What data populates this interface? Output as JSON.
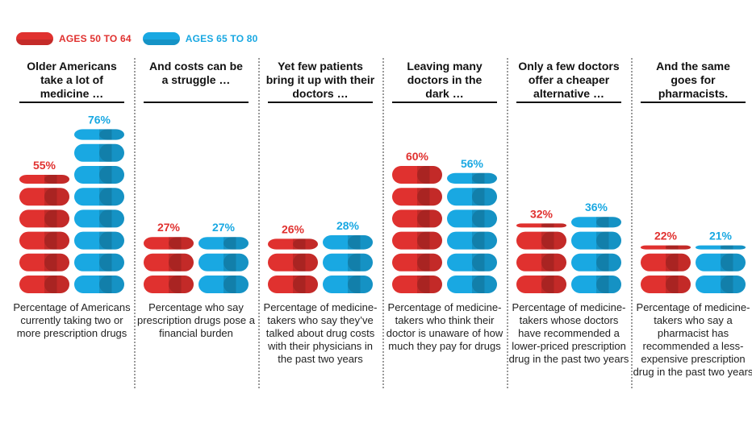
{
  "chart_data": {
    "type": "bar",
    "title": "",
    "series": [
      {
        "name": "AGES 50 TO 64",
        "color": "#e0312f"
      },
      {
        "name": "AGES 65 TO 80",
        "color": "#19a8e2"
      }
    ],
    "panels": [
      {
        "headline": "Older Americans take a lot of medicine …",
        "values": [
          55,
          76
        ],
        "labels": [
          "55%",
          "76%"
        ],
        "caption": "Percentage of Americans currently taking two or more prescription drugs"
      },
      {
        "headline": "And costs can be a struggle …",
        "values": [
          27,
          27
        ],
        "labels": [
          "27%",
          "27%"
        ],
        "caption": "Percentage who say prescription drugs pose a financial burden"
      },
      {
        "headline": "Yet few patients bring it up with their doctors …",
        "values": [
          26,
          28
        ],
        "labels": [
          "26%",
          "28%"
        ],
        "caption": "Percentage of medicine-takers who say they’ve talked about drug costs with their physicians in the past two years"
      },
      {
        "headline": "Leaving many doctors in the dark …",
        "values": [
          60,
          56
        ],
        "labels": [
          "60%",
          "56%"
        ],
        "caption": "Percentage of medicine-takers who think their doctor is unaware of how much they pay for drugs"
      },
      {
        "headline": "Only a few doctors offer a cheaper alternative …",
        "values": [
          32,
          36
        ],
        "labels": [
          "32%",
          "36%"
        ],
        "caption": "Percentage of medicine-takers whose doctors have recommended a lower-priced prescription drug in the past two years"
      },
      {
        "headline": "And the same goes for pharmacists.",
        "values": [
          22,
          21
        ],
        "labels": [
          "22%",
          "21%"
        ],
        "caption": "Percentage of medicine-takers who say a pharmacist has recommended a less-expensive prescription drug in the past two years"
      }
    ],
    "unit": "%",
    "ylim": [
      0,
      100
    ],
    "pill_value": 10
  },
  "legend": {
    "items": [
      {
        "label": "AGES 50 TO 64",
        "color": "#e0312f"
      },
      {
        "label": "AGES 65 TO 80",
        "color": "#19a8e2"
      }
    ]
  }
}
